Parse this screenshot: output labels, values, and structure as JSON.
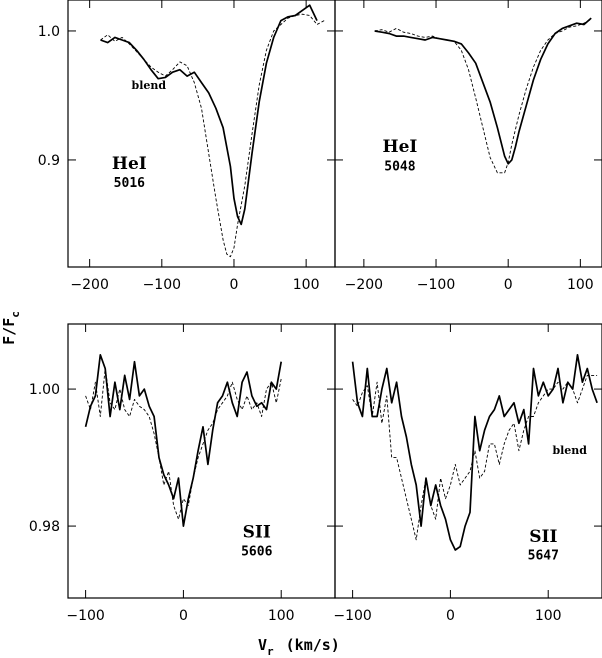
{
  "figure": {
    "ylabel": "F/F",
    "ylabel_sub": "c",
    "xlabel": "V",
    "xlabel_sub": "r",
    "xlabel_unit": "(km/s)"
  },
  "chart_data": [
    {
      "type": "line",
      "xlim": [
        -230,
        140
      ],
      "ylim": [
        0.817,
        1.024
      ],
      "xticks": [
        -200,
        -100,
        0,
        100
      ],
      "xtick_labels": [
        "−200",
        "−100",
        "0",
        "100"
      ],
      "yticks": [
        0.9,
        1.0
      ],
      "ytick_labels": [
        "0.9",
        "1.0"
      ],
      "annotations": [
        {
          "text": "HeI",
          "x": -145,
          "y": 0.893,
          "cls": "ann-big"
        },
        {
          "text": "5016",
          "x": -145,
          "y": 0.879,
          "cls": "ann-num"
        },
        {
          "text": "blend",
          "x": -118,
          "y": 0.955,
          "cls": "ann-small"
        }
      ],
      "series": [
        {
          "style": "solid",
          "x": [
            -185,
            -175,
            -165,
            -155,
            -145,
            -135,
            -125,
            -115,
            -105,
            -95,
            -85,
            -75,
            -65,
            -55,
            -45,
            -35,
            -25,
            -15,
            -5,
            0,
            5,
            10,
            15,
            25,
            35,
            45,
            55,
            65,
            75,
            85,
            95,
            105,
            115
          ],
          "y": [
            0.993,
            0.991,
            0.995,
            0.993,
            0.991,
            0.985,
            0.978,
            0.97,
            0.963,
            0.964,
            0.968,
            0.97,
            0.965,
            0.968,
            0.96,
            0.952,
            0.94,
            0.925,
            0.895,
            0.87,
            0.856,
            0.85,
            0.862,
            0.905,
            0.945,
            0.975,
            0.995,
            1.008,
            1.011,
            1.012,
            1.016,
            1.02,
            1.008
          ]
        },
        {
          "style": "dashed",
          "x": [
            -185,
            -175,
            -165,
            -155,
            -145,
            -135,
            -125,
            -115,
            -105,
            -95,
            -85,
            -75,
            -65,
            -55,
            -45,
            -35,
            -25,
            -15,
            -10,
            -5,
            0,
            5,
            15,
            25,
            35,
            45,
            55,
            65,
            75,
            85,
            95,
            105,
            115,
            125
          ],
          "y": [
            0.993,
            0.997,
            0.992,
            0.995,
            0.99,
            0.984,
            0.978,
            0.972,
            0.968,
            0.965,
            0.97,
            0.976,
            0.973,
            0.96,
            0.94,
            0.905,
            0.87,
            0.838,
            0.827,
            0.825,
            0.832,
            0.85,
            0.88,
            0.92,
            0.958,
            0.985,
            1.0,
            1.005,
            1.01,
            1.012,
            1.013,
            1.012,
            1.005,
            1.008
          ]
        }
      ]
    },
    {
      "type": "line",
      "xlim": [
        -240,
        130
      ],
      "ylim": [
        0.817,
        1.024
      ],
      "xticks": [
        -200,
        -100,
        0,
        100
      ],
      "xtick_labels": [
        "−200",
        "−100",
        "0",
        "100"
      ],
      "yticks": [
        0.9,
        1.0
      ],
      "ytick_labels": [
        "",
        ""
      ],
      "annotations": [
        {
          "text": "HeI",
          "x": -150,
          "y": 0.906,
          "cls": "ann-big"
        },
        {
          "text": "5048",
          "x": -150,
          "y": 0.892,
          "cls": "ann-num"
        }
      ],
      "series": [
        {
          "style": "solid",
          "x": [
            -185,
            -175,
            -165,
            -155,
            -145,
            -135,
            -125,
            -115,
            -105,
            -95,
            -85,
            -75,
            -65,
            -55,
            -45,
            -35,
            -25,
            -15,
            -5,
            0,
            5,
            10,
            15,
            25,
            35,
            45,
            55,
            65,
            75,
            85,
            95,
            105,
            115
          ],
          "y": [
            1.0,
            0.999,
            0.998,
            0.996,
            0.996,
            0.995,
            0.994,
            0.993,
            0.995,
            0.994,
            0.993,
            0.992,
            0.99,
            0.983,
            0.975,
            0.96,
            0.945,
            0.925,
            0.903,
            0.897,
            0.9,
            0.91,
            0.922,
            0.942,
            0.962,
            0.978,
            0.99,
            0.998,
            1.002,
            1.004,
            1.006,
            1.005,
            1.01
          ]
        },
        {
          "style": "dashed",
          "x": [
            -185,
            -175,
            -165,
            -155,
            -145,
            -135,
            -125,
            -115,
            -105,
            -95,
            -85,
            -75,
            -65,
            -55,
            -45,
            -35,
            -25,
            -15,
            -5,
            0,
            5,
            15,
            25,
            35,
            45,
            55,
            65,
            75,
            85,
            95,
            105,
            115
          ],
          "y": [
            1.0,
            1.001,
            0.999,
            1.002,
            0.999,
            0.998,
            0.996,
            0.995,
            0.996,
            0.994,
            0.993,
            0.992,
            0.985,
            0.97,
            0.948,
            0.925,
            0.902,
            0.89,
            0.89,
            0.898,
            0.912,
            0.935,
            0.955,
            0.972,
            0.985,
            0.993,
            0.998,
            1.0,
            1.003,
            1.004,
            1.006,
            1.009
          ]
        }
      ]
    },
    {
      "type": "line",
      "xlim": [
        -118,
        155
      ],
      "ylim": [
        0.9695,
        1.0095
      ],
      "xticks": [
        -100,
        0,
        100
      ],
      "xtick_labels": [
        "−100",
        "0",
        "100"
      ],
      "yticks": [
        0.98,
        1.0
      ],
      "ytick_labels": [
        "0.98",
        "1.00"
      ],
      "annotations": [
        {
          "text": "SII",
          "x": 75,
          "y": 0.9783,
          "cls": "ann-big"
        },
        {
          "text": "5606",
          "x": 75,
          "y": 0.9757,
          "cls": "ann-num"
        }
      ],
      "series": [
        {
          "style": "solid",
          "x": [
            -100,
            -95,
            -90,
            -85,
            -80,
            -75,
            -70,
            -65,
            -60,
            -55,
            -50,
            -45,
            -40,
            -35,
            -30,
            -25,
            -20,
            -15,
            -10,
            -5,
            0,
            5,
            10,
            15,
            20,
            25,
            30,
            35,
            40,
            45,
            50,
            55,
            60,
            65,
            70,
            75,
            80,
            85,
            90,
            95,
            100
          ],
          "y": [
            0.9945,
            0.9975,
            0.999,
            1.005,
            1.003,
            0.996,
            1.001,
            0.997,
            1.002,
            0.9985,
            1.004,
            0.999,
            1.0,
            0.9975,
            0.996,
            0.99,
            0.9875,
            0.986,
            0.984,
            0.987,
            0.98,
            0.984,
            0.987,
            0.991,
            0.9945,
            0.989,
            0.994,
            0.998,
            0.999,
            1.001,
            0.998,
            0.996,
            1.001,
            1.0025,
            0.999,
            0.9975,
            0.998,
            0.997,
            1.001,
            1.0,
            1.004
          ]
        },
        {
          "style": "dashed",
          "x": [
            -100,
            -95,
            -90,
            -85,
            -80,
            -75,
            -70,
            -65,
            -60,
            -55,
            -50,
            -45,
            -40,
            -35,
            -30,
            -25,
            -20,
            -15,
            -10,
            -5,
            0,
            5,
            10,
            15,
            20,
            25,
            30,
            35,
            40,
            45,
            50,
            55,
            60,
            65,
            70,
            75,
            80,
            85,
            90,
            95,
            100
          ],
          "y": [
            0.999,
            0.997,
            1.001,
            0.996,
            1.003,
            0.998,
            0.997,
            1.0,
            0.997,
            0.996,
            0.9985,
            0.9975,
            0.997,
            0.996,
            0.9935,
            0.99,
            0.986,
            0.988,
            0.983,
            0.981,
            0.984,
            0.983,
            0.987,
            0.99,
            0.992,
            0.994,
            0.995,
            0.997,
            0.998,
            0.999,
            1.001,
            0.9985,
            0.997,
            0.999,
            0.997,
            0.998,
            0.996,
            1.0,
            1.001,
            0.998,
            1.0015
          ]
        }
      ]
    },
    {
      "type": "line",
      "xlim": [
        -118,
        155
      ],
      "ylim": [
        0.9695,
        1.0095
      ],
      "xticks": [
        -100,
        0,
        100
      ],
      "xtick_labels": [
        "−100",
        "0",
        "100"
      ],
      "yticks": [
        0.98,
        1.0
      ],
      "ytick_labels": [
        "",
        ""
      ],
      "annotations": [
        {
          "text": "SII",
          "x": 95,
          "y": 0.9777,
          "cls": "ann-big"
        },
        {
          "text": "5647",
          "x": 95,
          "y": 0.9751,
          "cls": "ann-num"
        },
        {
          "text": "blend",
          "x": 122,
          "y": 0.9905,
          "cls": "ann-small"
        }
      ],
      "series": [
        {
          "style": "solid",
          "x": [
            -100,
            -95,
            -90,
            -85,
            -80,
            -75,
            -70,
            -65,
            -60,
            -55,
            -50,
            -45,
            -40,
            -35,
            -30,
            -25,
            -20,
            -15,
            -10,
            -5,
            0,
            5,
            10,
            15,
            20,
            25,
            30,
            35,
            40,
            45,
            50,
            55,
            60,
            65,
            70,
            75,
            80,
            85,
            90,
            95,
            100,
            105,
            110,
            115,
            120,
            125,
            130,
            135,
            140,
            145,
            150
          ],
          "y": [
            1.004,
            0.998,
            0.996,
            1.003,
            0.996,
            0.996,
            1.0,
            1.003,
            0.998,
            1.001,
            0.996,
            0.993,
            0.989,
            0.986,
            0.98,
            0.987,
            0.983,
            0.986,
            0.983,
            0.981,
            0.978,
            0.9765,
            0.977,
            0.98,
            0.982,
            0.996,
            0.991,
            0.994,
            0.996,
            0.997,
            0.999,
            0.996,
            0.997,
            0.998,
            0.995,
            0.997,
            0.992,
            1.003,
            0.999,
            1.001,
            0.999,
            1.0,
            1.003,
            0.998,
            1.001,
            1.0,
            1.005,
            1.001,
            1.003,
            1.0,
            0.998
          ]
        },
        {
          "style": "dashed",
          "x": [
            -100,
            -95,
            -90,
            -85,
            -80,
            -75,
            -70,
            -65,
            -60,
            -55,
            -50,
            -45,
            -40,
            -35,
            -30,
            -25,
            -20,
            -15,
            -10,
            -5,
            0,
            5,
            10,
            15,
            20,
            25,
            30,
            35,
            40,
            45,
            50,
            55,
            60,
            65,
            70,
            75,
            80,
            85,
            90,
            95,
            100,
            105,
            110,
            115,
            120,
            125,
            130,
            135,
            140,
            145,
            150
          ],
          "y": [
            0.9985,
            0.9975,
            0.9995,
            1.0005,
            0.996,
            1.001,
            0.995,
            0.999,
            0.99,
            0.99,
            0.987,
            0.984,
            0.981,
            0.978,
            0.983,
            0.987,
            0.983,
            0.981,
            0.987,
            0.984,
            0.986,
            0.989,
            0.986,
            0.987,
            0.988,
            0.991,
            0.987,
            0.988,
            0.992,
            0.992,
            0.989,
            0.992,
            0.994,
            0.995,
            0.991,
            0.994,
            0.996,
            0.996,
            0.998,
            0.999,
            1.0,
            1.0,
            1.001,
            1.0,
            1.001,
            1.0,
            0.998,
            1.0,
            1.002,
            1.002,
            1.002
          ]
        }
      ]
    }
  ]
}
